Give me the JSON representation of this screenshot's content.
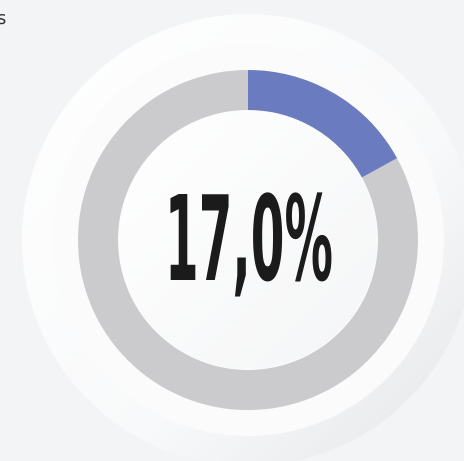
{
  "corner_text": "s",
  "chart_data": {
    "type": "gauge",
    "value": 17,
    "value_label": "17,0%",
    "ylim": [
      0,
      100
    ],
    "color": "#6b7bbf",
    "track_color": "#cbcbcd"
  }
}
